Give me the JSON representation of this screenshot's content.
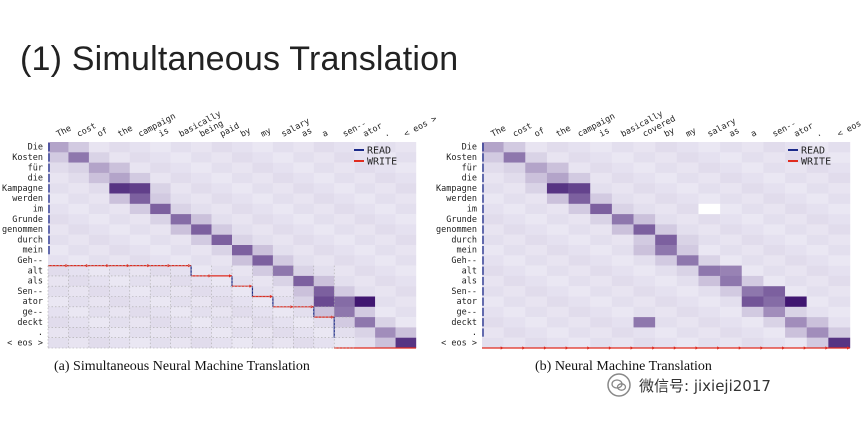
{
  "slide": {
    "title": "(1) Simultaneous Translation"
  },
  "figures": [
    {
      "id": "a",
      "caption": "(a)  Simultaneous Neural Machine Translation",
      "legend": {
        "read": "READ",
        "write": "WRITE",
        "read_color": "#1b2a8a",
        "write_color": "#e02b1f"
      },
      "source_tokens": [
        "The",
        "cost",
        "of",
        "the",
        "campaign",
        "is",
        "basically",
        "being",
        "paid",
        "by",
        "my",
        "salary",
        "as",
        "a",
        "sen--",
        "ator",
        ".",
        "< eos >"
      ],
      "target_tokens": [
        "Die",
        "Kosten",
        "für",
        "die",
        "Kampagne",
        "werden",
        "im",
        "Grunde",
        "genommen",
        "durch",
        "mein",
        "Geh--",
        "alt",
        "als",
        "Sen--",
        "ator",
        "ge--",
        "deckt",
        ".",
        "< eos >"
      ]
    },
    {
      "id": "b",
      "caption": "(b)  Neural Machine Translation",
      "legend": {
        "read": "READ",
        "write": "WRITE",
        "read_color": "#1b2a8a",
        "write_color": "#e02b1f"
      },
      "source_tokens": [
        "The",
        "cost",
        "of",
        "the",
        "campaign",
        "is",
        "basically",
        "covered",
        "by",
        "my",
        "salary",
        "as",
        "a",
        "sen--",
        "ator",
        ".",
        "< eos >"
      ],
      "target_tokens": [
        "Die",
        "Kosten",
        "für",
        "die",
        "Kampagne",
        "werden",
        "im",
        "Grunde",
        "genommen",
        "durch",
        "mein",
        "Geh--",
        "alt",
        "als",
        "Sen--",
        "ator",
        "ge--",
        "deckt",
        ".",
        "< eos >"
      ]
    }
  ],
  "watermark": {
    "text": "微信号: jixieji2017",
    "icon": "wechat-icon"
  }
}
